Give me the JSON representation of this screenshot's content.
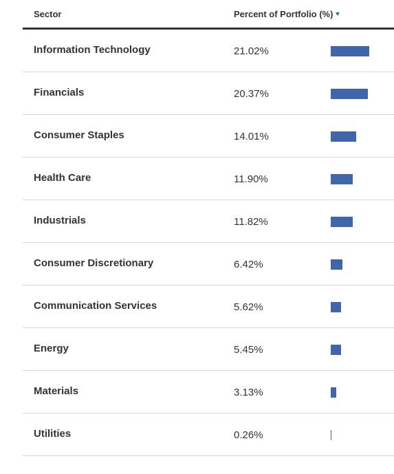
{
  "table": {
    "headers": {
      "sector": "Sector",
      "percent": "Percent of Portfolio (%)"
    },
    "sort_icon": "sort-descending-icon",
    "bar_color": "#3e66a8",
    "rows": [
      {
        "sector": "Information Technology",
        "percent": "21.02%",
        "value": 21.02
      },
      {
        "sector": "Financials",
        "percent": "20.37%",
        "value": 20.37
      },
      {
        "sector": "Consumer Staples",
        "percent": "14.01%",
        "value": 14.01
      },
      {
        "sector": "Health Care",
        "percent": "11.90%",
        "value": 11.9
      },
      {
        "sector": "Industrials",
        "percent": "11.82%",
        "value": 11.82
      },
      {
        "sector": "Consumer Discretionary",
        "percent": "6.42%",
        "value": 6.42
      },
      {
        "sector": "Communication Services",
        "percent": "5.62%",
        "value": 5.62
      },
      {
        "sector": "Energy",
        "percent": "5.45%",
        "value": 5.45
      },
      {
        "sector": "Materials",
        "percent": "3.13%",
        "value": 3.13
      },
      {
        "sector": "Utilities",
        "percent": "0.26%",
        "value": 0.26
      }
    ]
  }
}
